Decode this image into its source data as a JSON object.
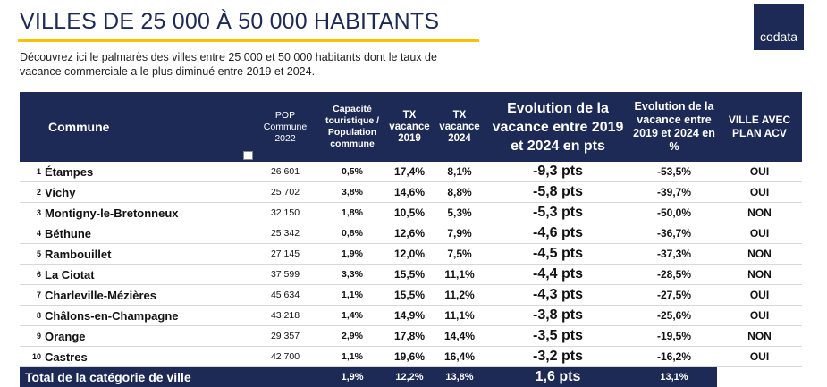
{
  "header": {
    "title": "VILLES DE 25 000 À 50 000 HABITANTS",
    "subtitle": "Découvrez ici le palmarès des villes entre 25 000 et 50 000 habitants dont le taux de vacance commerciale a le plus diminué entre 2019 et 2024.",
    "logo": "codata"
  },
  "table": {
    "columns": [
      "Commune",
      "POP Commune 2022",
      "Capacité touristique / Population commune",
      "TX vacance 2019",
      "TX vacance 2024",
      "Evolution de la vacance entre 2019 et 2024 en pts",
      "Evolution de la vacance entre 2019 et 2024 en %",
      "VILLE AVEC PLAN ACV"
    ],
    "rows": [
      [
        "1",
        "Étampes",
        "26 601",
        "0,5%",
        "17,4%",
        "8,1%",
        "-9,3 pts",
        "-53,5%",
        "OUI"
      ],
      [
        "2",
        "Vichy",
        "25 702",
        "3,8%",
        "14,6%",
        "8,8%",
        "-5,8 pts",
        "-39,7%",
        "OUI"
      ],
      [
        "3",
        "Montigny-le-Bretonneux",
        "32 150",
        "1,8%",
        "10,5%",
        "5,3%",
        "-5,3 pts",
        "-50,0%",
        "NON"
      ],
      [
        "4",
        "Béthune",
        "25 342",
        "0,8%",
        "12,6%",
        "7,9%",
        "-4,6 pts",
        "-36,7%",
        "OUI"
      ],
      [
        "5",
        "Rambouillet",
        "27 145",
        "1,9%",
        "12,0%",
        "7,5%",
        "-4,5 pts",
        "-37,3%",
        "NON"
      ],
      [
        "6",
        "La Ciotat",
        "37 599",
        "3,3%",
        "15,5%",
        "11,1%",
        "-4,4 pts",
        "-28,5%",
        "NON"
      ],
      [
        "7",
        "Charleville-Mézières",
        "45 634",
        "1,1%",
        "15,5%",
        "11,2%",
        "-4,3 pts",
        "-27,5%",
        "OUI"
      ],
      [
        "8",
        "Châlons-en-Champagne",
        "43 218",
        "1,4%",
        "14,9%",
        "11,1%",
        "-3,8 pts",
        "-25,6%",
        "OUI"
      ],
      [
        "9",
        "Orange",
        "29 357",
        "2,9%",
        "17,8%",
        "14,4%",
        "-3,5 pts",
        "-19,5%",
        "NON"
      ],
      [
        "10",
        "Castres",
        "42 700",
        "1,1%",
        "19,6%",
        "16,4%",
        "-3,2 pts",
        "-16,2%",
        "OUI"
      ]
    ],
    "total": {
      "label": "Total de la catégorie de ville",
      "capacity": "1,9%",
      "tx2019": "12,2%",
      "tx2024": "13,8%",
      "evolution_pts": "1,6 pts",
      "evolution_pct": "13,1%"
    }
  }
}
